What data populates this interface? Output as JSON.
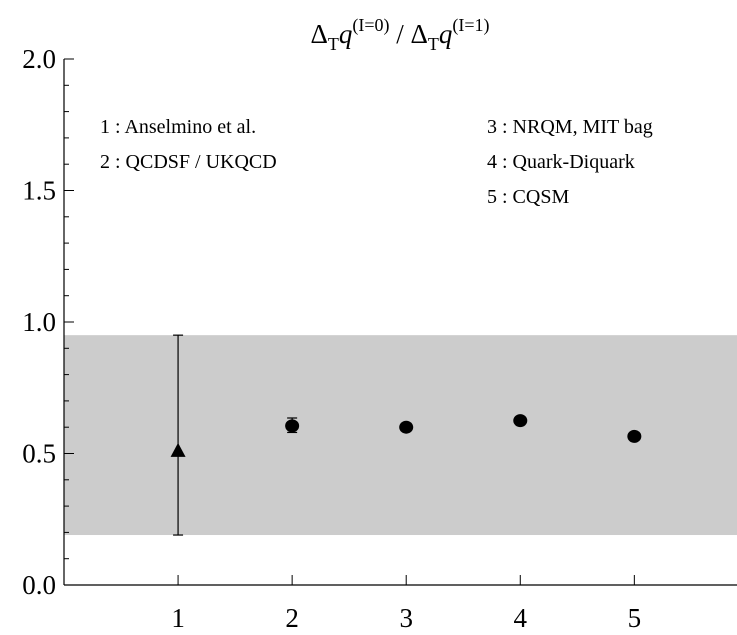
{
  "chart_data": {
    "type": "scatter",
    "title": {
      "base": "Δ",
      "sub": "T",
      "var": "q",
      "sup_num": "(I=0)",
      "sep": " / ",
      "sup_den": "(I=1)"
    },
    "xlabel": "",
    "ylabel": "",
    "xlim": [
      0,
      5.9
    ],
    "ylim": [
      0,
      2.0
    ],
    "x_ticks": [
      "1",
      "2",
      "3",
      "4",
      "5"
    ],
    "y_ticks": [
      "0.0",
      "0.5",
      "1.0",
      "1.5",
      "2.0"
    ],
    "band": {
      "low": 0.19,
      "high": 0.95,
      "color": "#cccccc"
    },
    "points": [
      {
        "x": 1,
        "y": 0.51,
        "err_low": 0.19,
        "err_high": 0.95,
        "marker": "triangle"
      },
      {
        "x": 2,
        "y": 0.605,
        "err_low": 0.58,
        "err_high": 0.635,
        "marker": "circle"
      },
      {
        "x": 3,
        "y": 0.6,
        "err_low": 0.6,
        "err_high": 0.6,
        "marker": "circle"
      },
      {
        "x": 4,
        "y": 0.625,
        "err_low": 0.625,
        "err_high": 0.625,
        "marker": "circle"
      },
      {
        "x": 5,
        "y": 0.565,
        "err_low": 0.565,
        "err_high": 0.565,
        "marker": "circle"
      }
    ],
    "legend": {
      "left": [
        "1 : Anselmino et al.",
        "2 : QCDSF / UKQCD"
      ],
      "right": [
        "3 : NRQM, MIT bag",
        "4 : Quark-Diquark",
        "5 : CQSM"
      ]
    },
    "grid": false
  }
}
